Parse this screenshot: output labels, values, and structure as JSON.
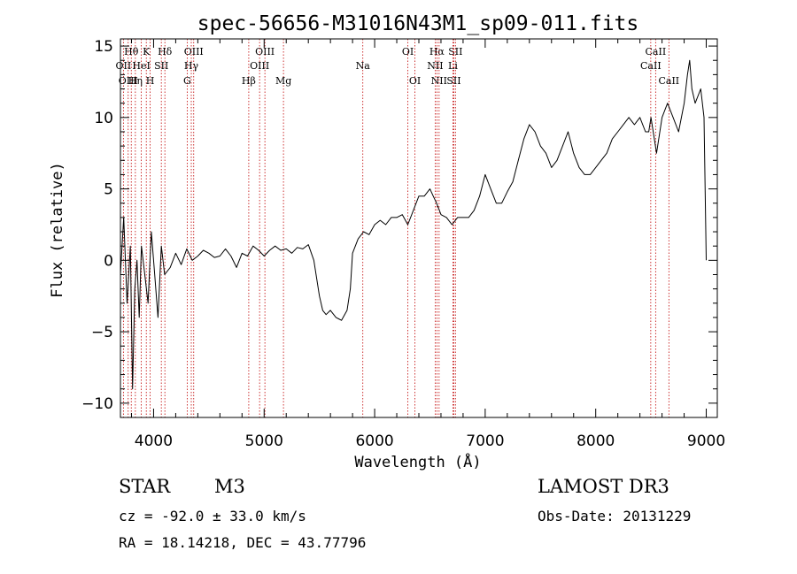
{
  "chart_data": {
    "type": "line",
    "title": "spec-56656-M31016N43M1_sp09-011.fits",
    "xlabel": "Wavelength (Å)",
    "ylabel": "Flux (relative)",
    "xlim": [
      3700,
      9100
    ],
    "ylim": [
      -11,
      15.5
    ],
    "xticks": [
      4000,
      5000,
      6000,
      7000,
      8000,
      9000
    ],
    "yticks": [
      -10,
      -5,
      0,
      5,
      10,
      15
    ],
    "x_minor_step": 200,
    "y_minor_step": 1,
    "series": [
      {
        "name": "spectrum",
        "x": [
          3700,
          3730,
          3760,
          3790,
          3810,
          3830,
          3850,
          3870,
          3890,
          3920,
          3950,
          3980,
          4010,
          4040,
          4070,
          4100,
          4150,
          4200,
          4250,
          4300,
          4350,
          4400,
          4450,
          4500,
          4550,
          4600,
          4650,
          4700,
          4750,
          4800,
          4850,
          4900,
          4950,
          5000,
          5050,
          5100,
          5150,
          5200,
          5250,
          5300,
          5350,
          5400,
          5450,
          5500,
          5530,
          5560,
          5600,
          5650,
          5700,
          5750,
          5780,
          5800,
          5850,
          5900,
          5950,
          6000,
          6050,
          6100,
          6150,
          6200,
          6250,
          6300,
          6350,
          6400,
          6450,
          6500,
          6530,
          6560,
          6600,
          6650,
          6700,
          6750,
          6800,
          6850,
          6900,
          6950,
          7000,
          7050,
          7100,
          7150,
          7200,
          7250,
          7300,
          7350,
          7400,
          7450,
          7500,
          7550,
          7600,
          7650,
          7700,
          7750,
          7800,
          7850,
          7900,
          7950,
          8000,
          8050,
          8100,
          8150,
          8200,
          8250,
          8300,
          8350,
          8400,
          8450,
          8480,
          8500,
          8550,
          8600,
          8650,
          8700,
          8750,
          8800,
          8830,
          8850,
          8870,
          8900,
          8950,
          8980,
          9000
        ],
        "y": [
          -1,
          3,
          -3,
          1,
          -9,
          -2,
          0,
          -4,
          1,
          -1,
          -3,
          2,
          -1,
          -4,
          1,
          -1,
          -0.5,
          0.5,
          -0.3,
          0.8,
          0,
          0.3,
          0.7,
          0.5,
          0.2,
          0.3,
          0.8,
          0.3,
          -0.5,
          0.5,
          0.3,
          1,
          0.7,
          0.3,
          0.7,
          1,
          0.7,
          0.8,
          0.5,
          0.9,
          0.8,
          1.1,
          0,
          -2.5,
          -3.5,
          -3.8,
          -3.5,
          -4,
          -4.2,
          -3.5,
          -2,
          0.5,
          1.5,
          2,
          1.8,
          2.5,
          2.8,
          2.5,
          3,
          3,
          3.2,
          2.5,
          3.5,
          4.5,
          4.5,
          5,
          4.5,
          4,
          3.2,
          3,
          2.5,
          3,
          3,
          3,
          3.5,
          4.5,
          6,
          5,
          4,
          4,
          4.8,
          5.5,
          7,
          8.5,
          9.5,
          9,
          8,
          7.5,
          6.5,
          7,
          8,
          9,
          7.5,
          6.5,
          6,
          6,
          6.5,
          7,
          7.5,
          8.5,
          9,
          9.5,
          10,
          9.5,
          10,
          9,
          9,
          10,
          7.5,
          10,
          11,
          10,
          9,
          11,
          13,
          14,
          12,
          11,
          12,
          10,
          0
        ]
      }
    ],
    "lines": [
      {
        "label": "Hθ",
        "x": 3798,
        "row": 1
      },
      {
        "label": "K",
        "x": 3934,
        "row": 1
      },
      {
        "label": "Hδ",
        "x": 4102,
        "row": 1
      },
      {
        "label": "OIII",
        "x": 4363,
        "row": 1
      },
      {
        "label": "OIII",
        "x": 5007,
        "row": 1
      },
      {
        "label": "OI",
        "x": 6300,
        "row": 1
      },
      {
        "label": "Hα",
        "x": 6563,
        "row": 1
      },
      {
        "label": "SII",
        "x": 6731,
        "row": 1
      },
      {
        "label": "CaII",
        "x": 8542,
        "row": 1
      },
      {
        "label": "OII",
        "x": 3727,
        "row": 2
      },
      {
        "label": "HeI",
        "x": 3889,
        "row": 2
      },
      {
        "label": "SII",
        "x": 4070,
        "row": 2
      },
      {
        "label": "Hγ",
        "x": 4341,
        "row": 2
      },
      {
        "label": "OIII",
        "x": 4959,
        "row": 2
      },
      {
        "label": "Na",
        "x": 5893,
        "row": 2
      },
      {
        "label": "NII",
        "x": 6548,
        "row": 2
      },
      {
        "label": "Li",
        "x": 6708,
        "row": 2
      },
      {
        "label": "CaII",
        "x": 8498,
        "row": 2
      },
      {
        "label": "OIII",
        "x": 3770,
        "row": 3
      },
      {
        "label": "Hη",
        "x": 3835,
        "row": 3
      },
      {
        "label": "H",
        "x": 3969,
        "row": 3
      },
      {
        "label": "G",
        "x": 4304,
        "row": 3
      },
      {
        "label": "Hβ",
        "x": 4861,
        "row": 3
      },
      {
        "label": "Mg",
        "x": 5175,
        "row": 3
      },
      {
        "label": "OI",
        "x": 6364,
        "row": 3
      },
      {
        "label": "NII",
        "x": 6583,
        "row": 3
      },
      {
        "label": "SII",
        "x": 6716,
        "row": 3
      },
      {
        "label": "CaII",
        "x": 8662,
        "row": 3
      }
    ]
  },
  "info": {
    "object_class": "STAR",
    "subclass": "M3",
    "survey": "LAMOST DR3",
    "cz": "cz = -92.0 ± 33.0 km/s",
    "obs_date": "Obs-Date: 20131229",
    "coords": "RA =  18.14218, DEC =  43.77796"
  }
}
